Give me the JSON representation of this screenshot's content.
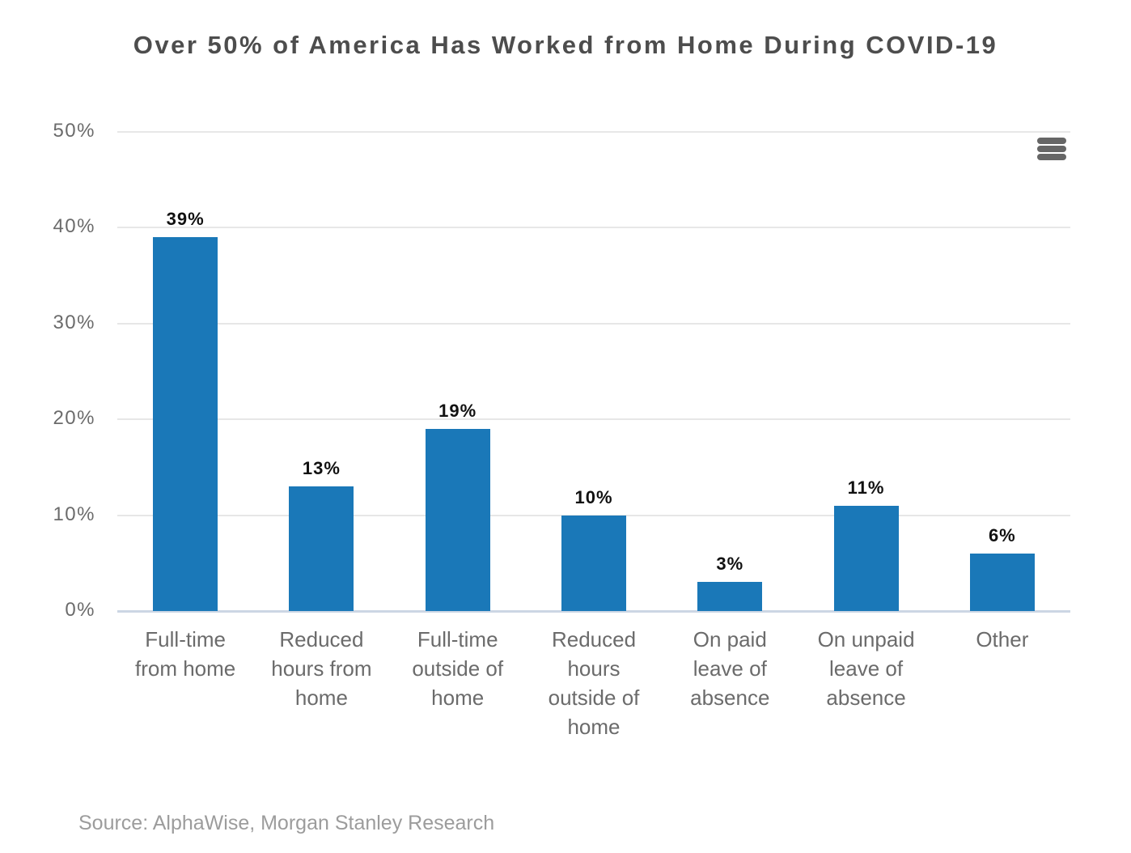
{
  "header": {
    "title": "Over 50% of America Has Worked from Home During COVID-19"
  },
  "toolbar": {
    "menu_icon": "hamburger-menu"
  },
  "chart_data": {
    "type": "bar",
    "title": "Over 50% of America Has Worked from Home During COVID-19",
    "categories": [
      "Full-time from home",
      "Reduced hours from home",
      "Full-time outside of home",
      "Reduced hours outside of home",
      "On paid leave of absence",
      "On unpaid leave of absence",
      "Other"
    ],
    "category_lines": [
      [
        "Full-time",
        "from home"
      ],
      [
        "Reduced",
        "hours from",
        "home"
      ],
      [
        "Full-time",
        "outside of",
        "home"
      ],
      [
        "Reduced",
        "hours",
        "outside of",
        "home"
      ],
      [
        "On paid",
        "leave of",
        "absence"
      ],
      [
        "On unpaid",
        "leave of",
        "absence"
      ],
      [
        "Other"
      ]
    ],
    "values": [
      39,
      13,
      19,
      10,
      3,
      11,
      6
    ],
    "data_labels": [
      "39%",
      "13%",
      "19%",
      "10%",
      "3%",
      "11%",
      "6%"
    ],
    "xlabel": "",
    "ylabel": "",
    "ylim": [
      0,
      50
    ],
    "yticks": [
      0,
      10,
      20,
      30,
      40,
      50
    ],
    "ytick_labels": [
      "0%",
      "10%",
      "20%",
      "30%",
      "40%",
      "50%"
    ],
    "grid": true,
    "legend": false
  },
  "colors": {
    "bar": "#1a78b8",
    "gridline": "#e7e7e7",
    "axis_line": "#ccd6e4",
    "title_text": "#4d4d4d",
    "axis_text": "#6b6b6b",
    "data_label_text": "#111111",
    "source_text": "#9c9c9c",
    "menu_icon": "#666666",
    "background": "#ffffff"
  },
  "footer": {
    "source": "Source: AlphaWise, Morgan Stanley Research"
  }
}
